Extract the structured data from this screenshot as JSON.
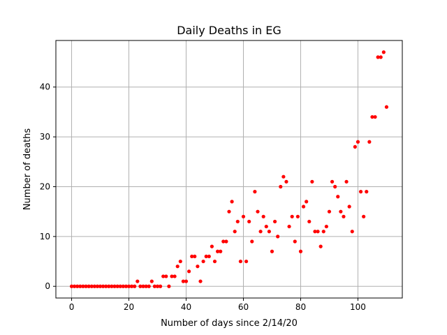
{
  "chart_data": {
    "type": "scatter",
    "title": "Daily Deaths in EG",
    "xlabel": "Number of days since 2/14/20",
    "ylabel": "Number of deaths",
    "xlim": [
      -5.5,
      115.5
    ],
    "ylim": [
      -2.35,
      49.35
    ],
    "xticks": [
      0,
      20,
      40,
      60,
      80,
      100
    ],
    "yticks": [
      0,
      10,
      20,
      30,
      40
    ],
    "grid": true,
    "marker_color": "#ff0000",
    "series": [
      {
        "name": "Daily deaths",
        "x": [
          0,
          1,
          2,
          3,
          4,
          5,
          6,
          7,
          8,
          9,
          10,
          11,
          12,
          13,
          14,
          15,
          16,
          17,
          18,
          19,
          20,
          21,
          22,
          23,
          24,
          25,
          26,
          27,
          28,
          29,
          30,
          31,
          32,
          33,
          34,
          35,
          36,
          37,
          38,
          39,
          40,
          41,
          42,
          43,
          44,
          45,
          46,
          47,
          48,
          49,
          50,
          51,
          52,
          53,
          54,
          55,
          56,
          57,
          58,
          59,
          60,
          61,
          62,
          63,
          64,
          65,
          66,
          67,
          68,
          69,
          70,
          71,
          72,
          73,
          74,
          75,
          76,
          77,
          78,
          79,
          80,
          81,
          82,
          83,
          84,
          85,
          86,
          87,
          88,
          89,
          90,
          91,
          92,
          93,
          94,
          95,
          96,
          97,
          98,
          99,
          100,
          101,
          102,
          103,
          104,
          105,
          106,
          107,
          108,
          109,
          110
        ],
        "y": [
          0,
          0,
          0,
          0,
          0,
          0,
          0,
          0,
          0,
          0,
          0,
          0,
          0,
          0,
          0,
          0,
          0,
          0,
          0,
          0,
          0,
          0,
          0,
          1,
          0,
          0,
          0,
          0,
          1,
          0,
          0,
          0,
          2,
          2,
          0,
          2,
          2,
          4,
          5,
          1,
          1,
          3,
          6,
          6,
          4,
          1,
          5,
          6,
          6,
          8,
          5,
          7,
          7,
          9,
          9,
          15,
          17,
          11,
          13,
          5,
          14,
          5,
          13,
          9,
          19,
          15,
          11,
          14,
          12,
          11,
          7,
          13,
          10,
          20,
          22,
          21,
          12,
          14,
          9,
          14,
          7,
          16,
          17,
          13,
          21,
          11,
          11,
          8,
          11,
          12,
          15,
          21,
          20,
          18,
          15,
          14,
          21,
          16,
          11,
          28,
          29,
          19,
          14,
          19,
          29,
          34,
          34,
          46,
          46,
          47,
          36
        ]
      }
    ]
  }
}
